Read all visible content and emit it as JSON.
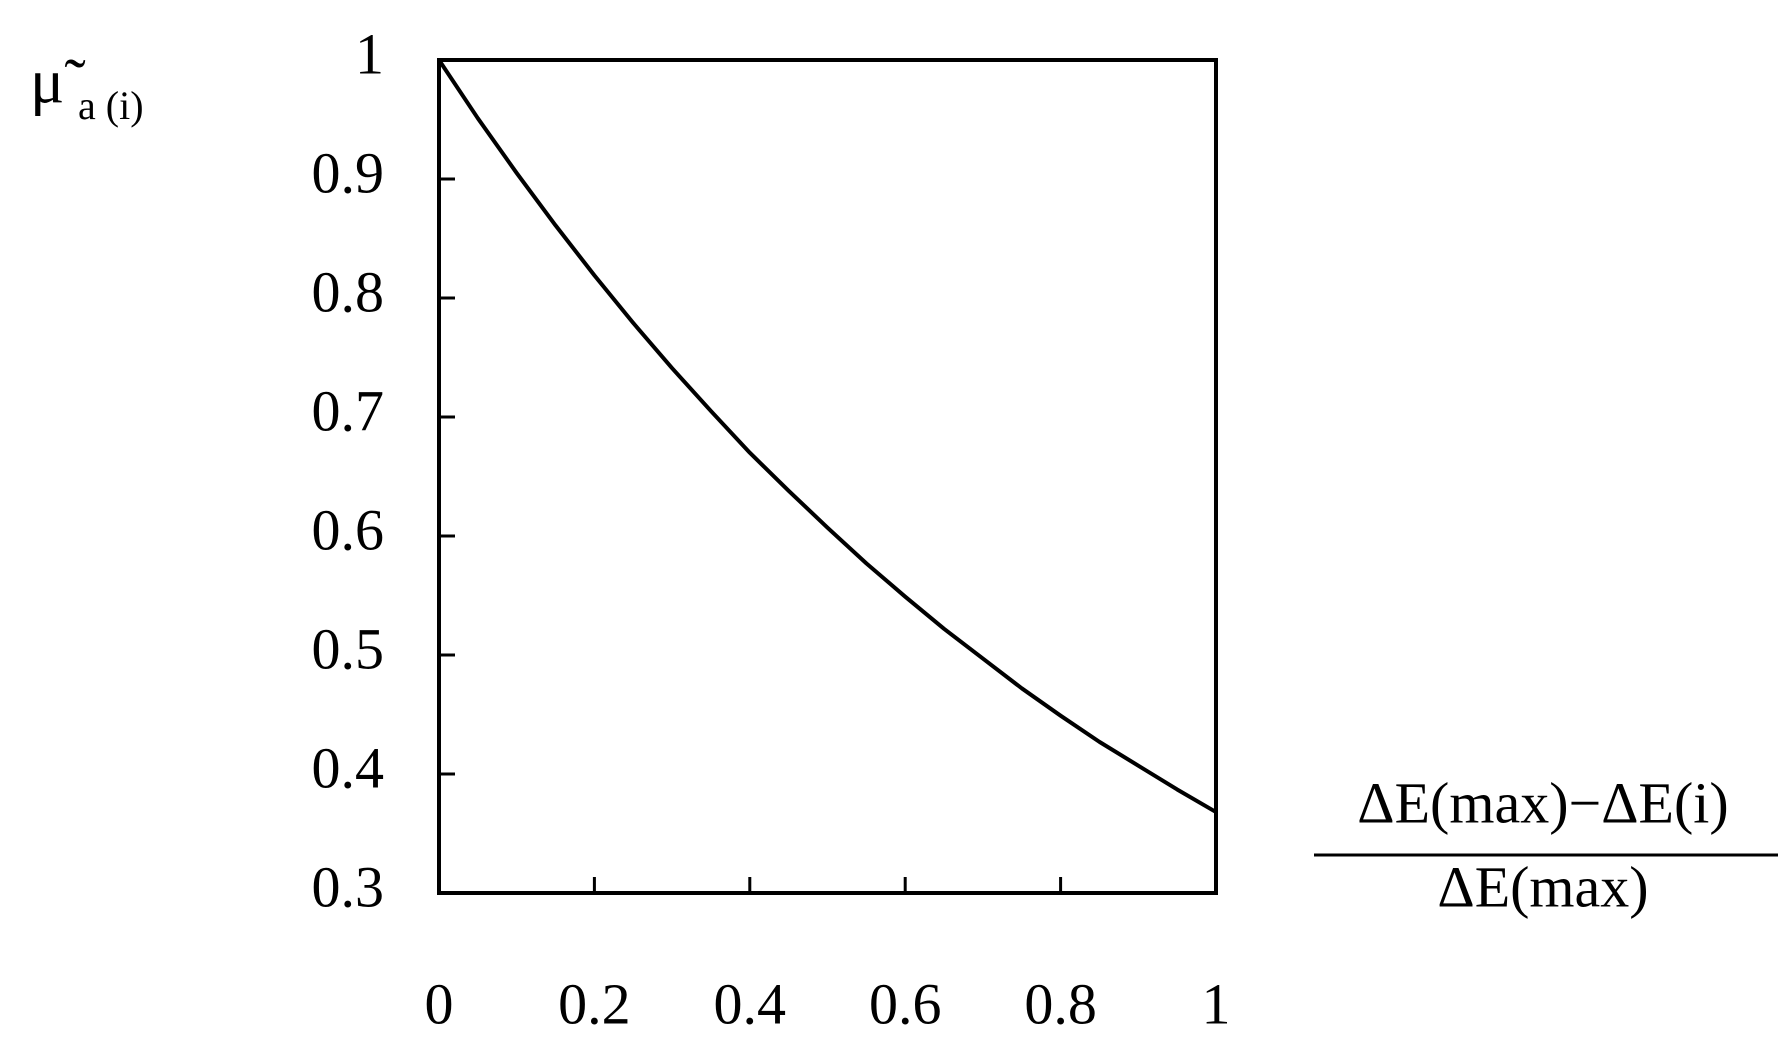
{
  "chart_data": {
    "type": "line",
    "ylabel": {
      "symbol": "μ̃",
      "subscript": "a (i)"
    },
    "xlabel": {
      "numerator": "ΔE(max)−ΔE(i)",
      "denominator": "ΔE(max)"
    },
    "x": [
      0,
      0.05,
      0.1,
      0.15,
      0.2,
      0.25,
      0.3,
      0.35,
      0.4,
      0.45,
      0.5,
      0.55,
      0.6,
      0.65,
      0.7,
      0.75,
      0.8,
      0.85,
      0.9,
      0.95,
      1
    ],
    "values": [
      1,
      0.951,
      0.905,
      0.861,
      0.819,
      0.779,
      0.741,
      0.705,
      0.67,
      0.638,
      0.607,
      0.577,
      0.549,
      0.522,
      0.497,
      0.472,
      0.449,
      0.427,
      0.407,
      0.387,
      0.368
    ],
    "color": "#000000",
    "xlim": [
      0,
      1
    ],
    "ylim": [
      0.3,
      1
    ],
    "xticks": [
      0,
      0.2,
      0.4,
      0.6,
      0.8,
      1
    ],
    "yticks": [
      0.3,
      0.4,
      0.5,
      0.6,
      0.7,
      0.8,
      0.9,
      1
    ],
    "grid": false
  }
}
